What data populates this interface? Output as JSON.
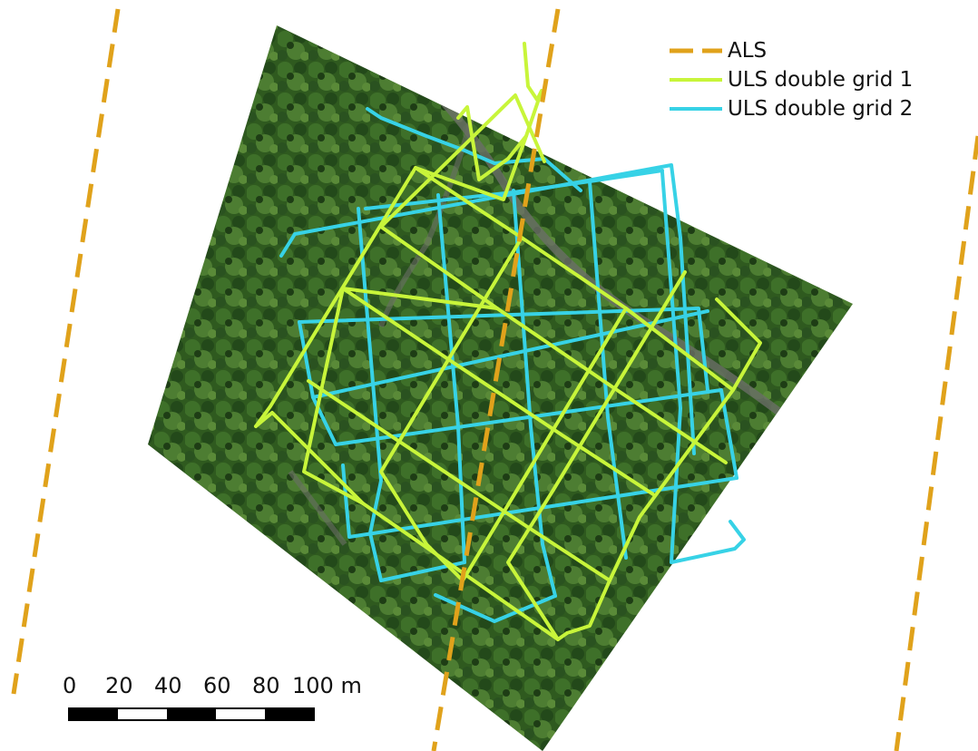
{
  "colors": {
    "als": "#e0a21b",
    "uls_grid_1": "#c8f53a",
    "uls_grid_2": "#37d2e6",
    "forest": "#33561f"
  },
  "legend": {
    "als": "ALS",
    "uls_grid_1": "ULS double grid 1",
    "uls_grid_2": "ULS double grid 2"
  },
  "scale_bar": {
    "ticks": [
      "0",
      "20",
      "40",
      "60",
      "80",
      "100 m"
    ],
    "max_value": 100,
    "unit": "m"
  }
}
